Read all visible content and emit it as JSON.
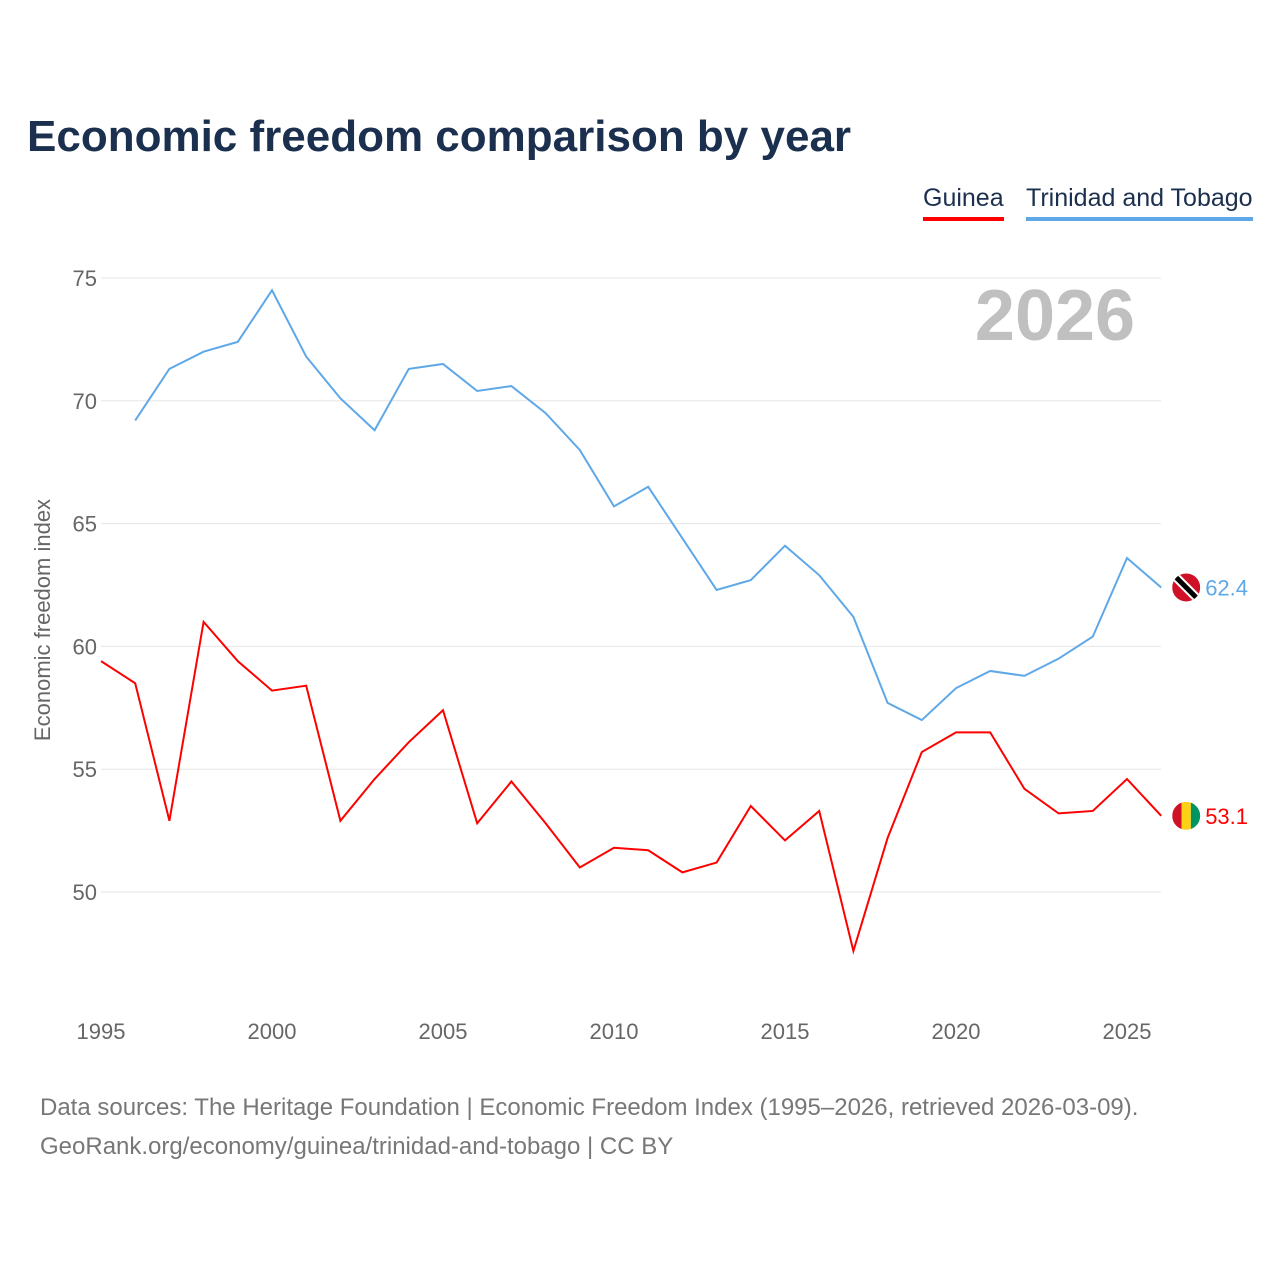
{
  "header": {
    "title": "Economic freedom comparison by year"
  },
  "legend": [
    {
      "label": "Guinea",
      "color": "#ff0000"
    },
    {
      "label": "Trinidad and Tobago",
      "color": "#5fa8e8"
    }
  ],
  "footer": {
    "line1": "Data sources: The Heritage Foundation | Economic Freedom Index (1995–2026, retrieved 2026-03-09).",
    "line2": "GeoRank.org/economy/guinea/trinidad-and-tobago | CC BY"
  },
  "chart_data": {
    "type": "line",
    "title": "Economic freedom comparison by year",
    "year_label": "2026",
    "ylabel": "Economic freedom index",
    "xlabel": "",
    "xlim": [
      1995,
      2026
    ],
    "ylim": [
      45.5,
      76
    ],
    "yticks": [
      50,
      55,
      60,
      65,
      70,
      75
    ],
    "xticks": [
      1995,
      2000,
      2005,
      2010,
      2015,
      2020,
      2025
    ],
    "series": [
      {
        "name": "Guinea",
        "color": "#ff0000",
        "end_label": "53.1",
        "x": [
          1995,
          1996,
          1997,
          1998,
          1999,
          2000,
          2001,
          2002,
          2003,
          2004,
          2005,
          2006,
          2007,
          2008,
          2009,
          2010,
          2011,
          2012,
          2013,
          2014,
          2015,
          2016,
          2017,
          2018,
          2019,
          2020,
          2021,
          2022,
          2023,
          2024,
          2025,
          2026
        ],
        "values": [
          59.4,
          58.5,
          52.9,
          61.0,
          59.4,
          58.2,
          58.4,
          52.9,
          54.6,
          56.1,
          57.4,
          52.8,
          54.5,
          52.8,
          51.0,
          51.8,
          51.7,
          50.8,
          51.2,
          53.5,
          52.1,
          53.3,
          47.6,
          52.2,
          55.7,
          56.5,
          56.5,
          54.2,
          53.2,
          53.3,
          54.6,
          53.1
        ]
      },
      {
        "name": "Trinidad and Tobago",
        "color": "#5fa8e8",
        "end_label": "62.4",
        "x": [
          1996,
          1997,
          1998,
          1999,
          2000,
          2001,
          2002,
          2003,
          2004,
          2005,
          2006,
          2007,
          2008,
          2009,
          2010,
          2011,
          2012,
          2013,
          2014,
          2015,
          2016,
          2017,
          2018,
          2019,
          2020,
          2021,
          2022,
          2023,
          2024,
          2025,
          2026
        ],
        "values": [
          69.2,
          71.3,
          72.0,
          72.4,
          74.5,
          71.8,
          70.1,
          68.8,
          71.3,
          71.5,
          70.4,
          70.6,
          69.5,
          68.0,
          65.7,
          66.5,
          64.4,
          62.3,
          62.7,
          64.1,
          62.9,
          61.2,
          57.7,
          57.0,
          58.3,
          59.0,
          58.8,
          59.5,
          60.4,
          63.6,
          62.4
        ]
      }
    ],
    "grid": true,
    "legend_position": "top-right"
  }
}
